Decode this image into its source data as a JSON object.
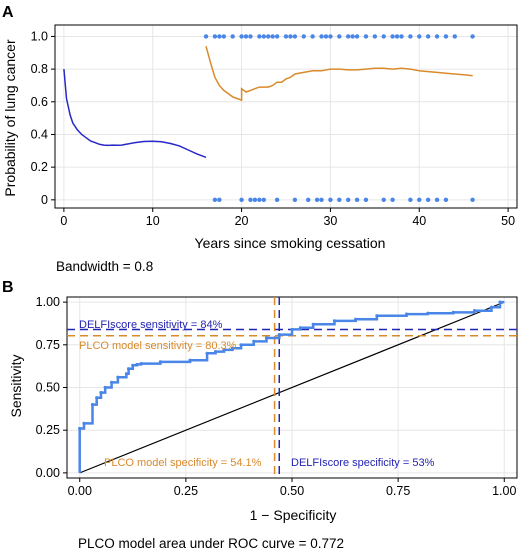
{
  "colors": {
    "blue_curve": "#2828c8",
    "orange_curve": "#d98a2b",
    "dots": "#4a86e8",
    "roc_line": "#4a86e8",
    "delfi": "#2323b4",
    "plco": "#d98a2b",
    "diagonal": "#000000",
    "grid": "#e6e6e6"
  },
  "panel_a": {
    "label": "A",
    "note": "Bandwidth = 0.8"
  },
  "panel_b": {
    "label": "B",
    "note": "PLCO model area under ROC curve = 0.772",
    "annotations": {
      "delfi_sensitivity": "DELFIscore sensitivity = 84%",
      "plco_sensitivity": "PLCO model sensitivity = 80.3%",
      "plco_specificity": "PLCO model specificity = 54.1%",
      "delfi_specificity": "DELFIscore specificity = 53%"
    }
  },
  "chart_data": [
    {
      "type": "scatter",
      "xlabel": "Years since smoking cessation",
      "ylabel": "Probability of lung cancer",
      "xlim": [
        -1,
        51
      ],
      "ylim": [
        -0.05,
        1.07
      ],
      "xticks": [
        "0",
        "10",
        "20",
        "30",
        "40",
        "50"
      ],
      "xtick_values": [
        0,
        10,
        20,
        30,
        40,
        50
      ],
      "yticks": [
        "0",
        "0.2",
        "0.4",
        "0.6",
        "0.8",
        "1.0"
      ],
      "ytick_values": [
        0,
        0.2,
        0.4,
        0.6,
        0.8,
        1.0
      ],
      "grid": true,
      "points_y1_x": [
        16,
        17,
        17.5,
        18,
        19,
        20,
        20.5,
        21,
        22,
        22.5,
        23,
        23.5,
        24,
        25,
        25.5,
        26,
        27,
        28,
        29,
        29.5,
        30,
        31,
        32,
        32.5,
        33,
        34,
        35,
        36,
        37,
        37.5,
        38,
        39,
        40,
        41,
        42,
        43,
        44,
        46
      ],
      "points_y0_x": [
        17,
        17.5,
        20,
        21,
        21.5,
        22,
        22.5,
        24,
        26,
        27.5,
        28.5,
        29,
        30,
        31,
        32,
        33,
        34,
        36,
        37,
        39,
        40,
        41,
        42,
        43,
        46
      ],
      "series": [
        {
          "values_x": [
            0,
            0.3,
            0.7,
            1,
            1.5,
            2,
            2.5,
            3,
            3.5,
            4,
            4.5,
            5,
            5.5,
            6,
            6.5,
            7,
            8,
            9,
            10,
            11,
            12,
            13,
            14,
            15,
            16
          ],
          "values_y": [
            0.8,
            0.62,
            0.52,
            0.47,
            0.43,
            0.4,
            0.38,
            0.36,
            0.35,
            0.34,
            0.335,
            0.333,
            0.335,
            0.334,
            0.335,
            0.34,
            0.35,
            0.357,
            0.358,
            0.355,
            0.345,
            0.33,
            0.305,
            0.28,
            0.26
          ]
        },
        {
          "values_x": [
            16,
            16.5,
            17,
            17.5,
            18,
            18.5,
            19,
            19.5,
            20,
            20,
            20.5,
            21,
            21.5,
            22,
            22.5,
            23,
            23.5,
            24,
            24.5,
            25,
            25.5,
            26,
            27,
            28,
            29,
            30,
            31,
            32,
            33,
            34,
            35,
            36,
            37,
            38,
            39,
            40,
            41,
            42,
            43,
            44,
            45,
            46
          ],
          "values_y": [
            0.94,
            0.84,
            0.75,
            0.7,
            0.67,
            0.65,
            0.63,
            0.62,
            0.61,
            0.68,
            0.66,
            0.67,
            0.68,
            0.69,
            0.69,
            0.69,
            0.7,
            0.72,
            0.72,
            0.74,
            0.75,
            0.77,
            0.78,
            0.79,
            0.79,
            0.8,
            0.8,
            0.795,
            0.795,
            0.8,
            0.805,
            0.805,
            0.8,
            0.805,
            0.8,
            0.79,
            0.785,
            0.78,
            0.775,
            0.77,
            0.765,
            0.76
          ]
        }
      ]
    },
    {
      "type": "line",
      "xlabel": "1 − Specificity",
      "ylabel": "Sensitivity",
      "xlim": [
        -0.03,
        1.03
      ],
      "ylim": [
        -0.03,
        1.03
      ],
      "xticks": [
        "0.00",
        "0.25",
        "0.50",
        "0.75",
        "1.00"
      ],
      "xtick_values": [
        0,
        0.25,
        0.5,
        0.75,
        1
      ],
      "yticks": [
        "0.00",
        "0.25",
        "0.50",
        "0.75",
        "1.00"
      ],
      "ytick_values": [
        0,
        0.25,
        0.5,
        0.75,
        1
      ],
      "grid": true,
      "series": [
        {
          "values_x": [
            0,
            0,
            0.01,
            0.01,
            0.03,
            0.03,
            0.04,
            0.04,
            0.05,
            0.05,
            0.06,
            0.06,
            0.075,
            0.075,
            0.09,
            0.09,
            0.11,
            0.11,
            0.115,
            0.115,
            0.125,
            0.125,
            0.135,
            0.135,
            0.145,
            0.145,
            0.19,
            0.19,
            0.26,
            0.26,
            0.3,
            0.3,
            0.32,
            0.32,
            0.34,
            0.34,
            0.36,
            0.36,
            0.38,
            0.38,
            0.41,
            0.41,
            0.44,
            0.44,
            0.47,
            0.47,
            0.5,
            0.5,
            0.52,
            0.52,
            0.55,
            0.55,
            0.6,
            0.6,
            0.65,
            0.65,
            0.7,
            0.7,
            0.77,
            0.77,
            0.82,
            0.82,
            0.88,
            0.88,
            0.93,
            0.93,
            0.97,
            0.97,
            0.99,
            0.99,
            1
          ],
          "values_y": [
            0,
            0.26,
            0.26,
            0.29,
            0.29,
            0.4,
            0.4,
            0.44,
            0.44,
            0.47,
            0.47,
            0.5,
            0.5,
            0.53,
            0.53,
            0.56,
            0.56,
            0.58,
            0.58,
            0.61,
            0.61,
            0.63,
            0.63,
            0.635,
            0.635,
            0.64,
            0.64,
            0.65,
            0.65,
            0.66,
            0.66,
            0.7,
            0.7,
            0.71,
            0.71,
            0.72,
            0.72,
            0.73,
            0.73,
            0.75,
            0.75,
            0.77,
            0.77,
            0.79,
            0.79,
            0.81,
            0.81,
            0.84,
            0.84,
            0.85,
            0.85,
            0.87,
            0.87,
            0.89,
            0.89,
            0.9,
            0.9,
            0.92,
            0.92,
            0.93,
            0.93,
            0.935,
            0.935,
            0.94,
            0.94,
            0.95,
            0.95,
            0.97,
            0.97,
            1.0,
            1.0
          ]
        }
      ],
      "diagonal": [
        [
          0,
          0
        ],
        [
          1,
          1
        ]
      ],
      "reference_lines": {
        "delfi_sensitivity": 0.84,
        "plco_sensitivity": 0.803,
        "plco_one_minus_specificity": 0.459,
        "delfi_one_minus_specificity": 0.47
      }
    }
  ]
}
